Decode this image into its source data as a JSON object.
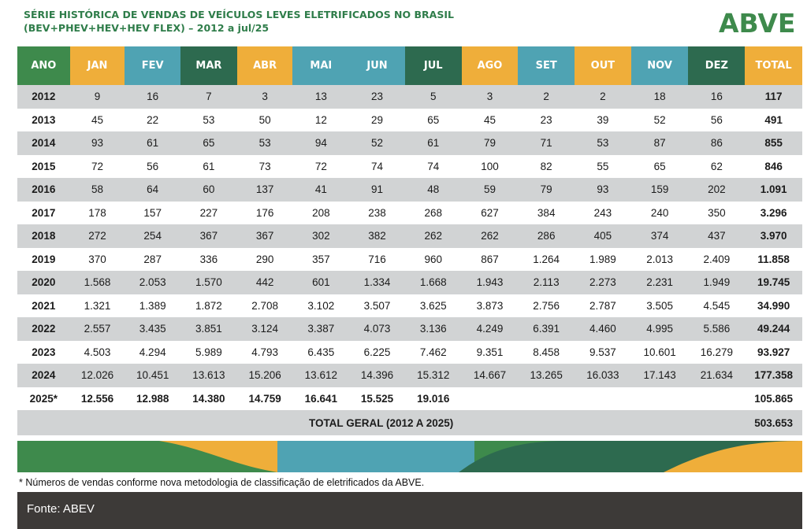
{
  "title_line1": "SÉRIE HISTÓRICA DE VENDAS DE VEÍCULOS LEVES ELETRIFICADOS NO BRASIL",
  "title_line2": "(BEV+PHEV+HEV+HEV FLEX) – 2012 a jul/25",
  "logo_text": "ABVE",
  "colors": {
    "green": "#3e8a4c",
    "orange": "#efae3a",
    "blue": "#4fa3b3",
    "dark_green": "#2d6a4f",
    "band": "#d1d3d4",
    "footer": "#3d3a38"
  },
  "chart_data": {
    "type": "table",
    "columns": [
      "ANO",
      "JAN",
      "FEV",
      "MAR",
      "ABR",
      "MAI",
      "JUN",
      "JUL",
      "AGO",
      "SET",
      "OUT",
      "NOV",
      "DEZ",
      "TOTAL"
    ],
    "header_colors": [
      "#3e8a4c",
      "#efae3a",
      "#4fa3b3",
      "#2d6a4f",
      "#efae3a",
      "#4fa3b3",
      "#4fa3b3",
      "#2d6a4f",
      "#efae3a",
      "#4fa3b3",
      "#efae3a",
      "#4fa3b3",
      "#2d6a4f",
      "#efae3a"
    ],
    "rows": [
      [
        "2012",
        "9",
        "16",
        "7",
        "3",
        "13",
        "23",
        "5",
        "3",
        "2",
        "2",
        "18",
        "16",
        "117"
      ],
      [
        "2013",
        "45",
        "22",
        "53",
        "50",
        "12",
        "29",
        "65",
        "45",
        "23",
        "39",
        "52",
        "56",
        "491"
      ],
      [
        "2014",
        "93",
        "61",
        "65",
        "53",
        "94",
        "52",
        "61",
        "79",
        "71",
        "53",
        "87",
        "86",
        "855"
      ],
      [
        "2015",
        "72",
        "56",
        "61",
        "73",
        "72",
        "74",
        "74",
        "100",
        "82",
        "55",
        "65",
        "62",
        "846"
      ],
      [
        "2016",
        "58",
        "64",
        "60",
        "137",
        "41",
        "91",
        "48",
        "59",
        "79",
        "93",
        "159",
        "202",
        "1.091"
      ],
      [
        "2017",
        "178",
        "157",
        "227",
        "176",
        "208",
        "238",
        "268",
        "627",
        "384",
        "243",
        "240",
        "350",
        "3.296"
      ],
      [
        "2018",
        "272",
        "254",
        "367",
        "367",
        "302",
        "382",
        "262",
        "262",
        "286",
        "405",
        "374",
        "437",
        "3.970"
      ],
      [
        "2019",
        "370",
        "287",
        "336",
        "290",
        "357",
        "716",
        "960",
        "867",
        "1.264",
        "1.989",
        "2.013",
        "2.409",
        "11.858"
      ],
      [
        "2020",
        "1.568",
        "2.053",
        "1.570",
        "442",
        "601",
        "1.334",
        "1.668",
        "1.943",
        "2.113",
        "2.273",
        "2.231",
        "1.949",
        "19.745"
      ],
      [
        "2021",
        "1.321",
        "1.389",
        "1.872",
        "2.708",
        "3.102",
        "3.507",
        "3.625",
        "3.873",
        "2.756",
        "2.787",
        "3.505",
        "4.545",
        "34.990"
      ],
      [
        "2022",
        "2.557",
        "3.435",
        "3.851",
        "3.124",
        "3.387",
        "4.073",
        "3.136",
        "4.249",
        "6.391",
        "4.460",
        "4.995",
        "5.586",
        "49.244"
      ],
      [
        "2023",
        "4.503",
        "4.294",
        "5.989",
        "4.793",
        "6.435",
        "6.225",
        "7.462",
        "9.351",
        "8.458",
        "9.537",
        "10.601",
        "16.279",
        "93.927"
      ],
      [
        "2024",
        "12.026",
        "10.451",
        "13.613",
        "15.206",
        "13.612",
        "14.396",
        "15.312",
        "14.667",
        "13.265",
        "16.033",
        "17.143",
        "21.634",
        "177.358"
      ],
      [
        "2025*",
        "12.556",
        "12.988",
        "14.380",
        "14.759",
        "16.641",
        "15.525",
        "19.016",
        "",
        "",
        "",
        "",
        "",
        "105.865"
      ]
    ],
    "grand_total_label": "TOTAL GERAL (2012 A 2025)",
    "grand_total_value": "503.653"
  },
  "footnote": "* Números de vendas conforme nova metodologia de classificação de eletrificados da ABVE.",
  "source": "Fonte: ABEV"
}
